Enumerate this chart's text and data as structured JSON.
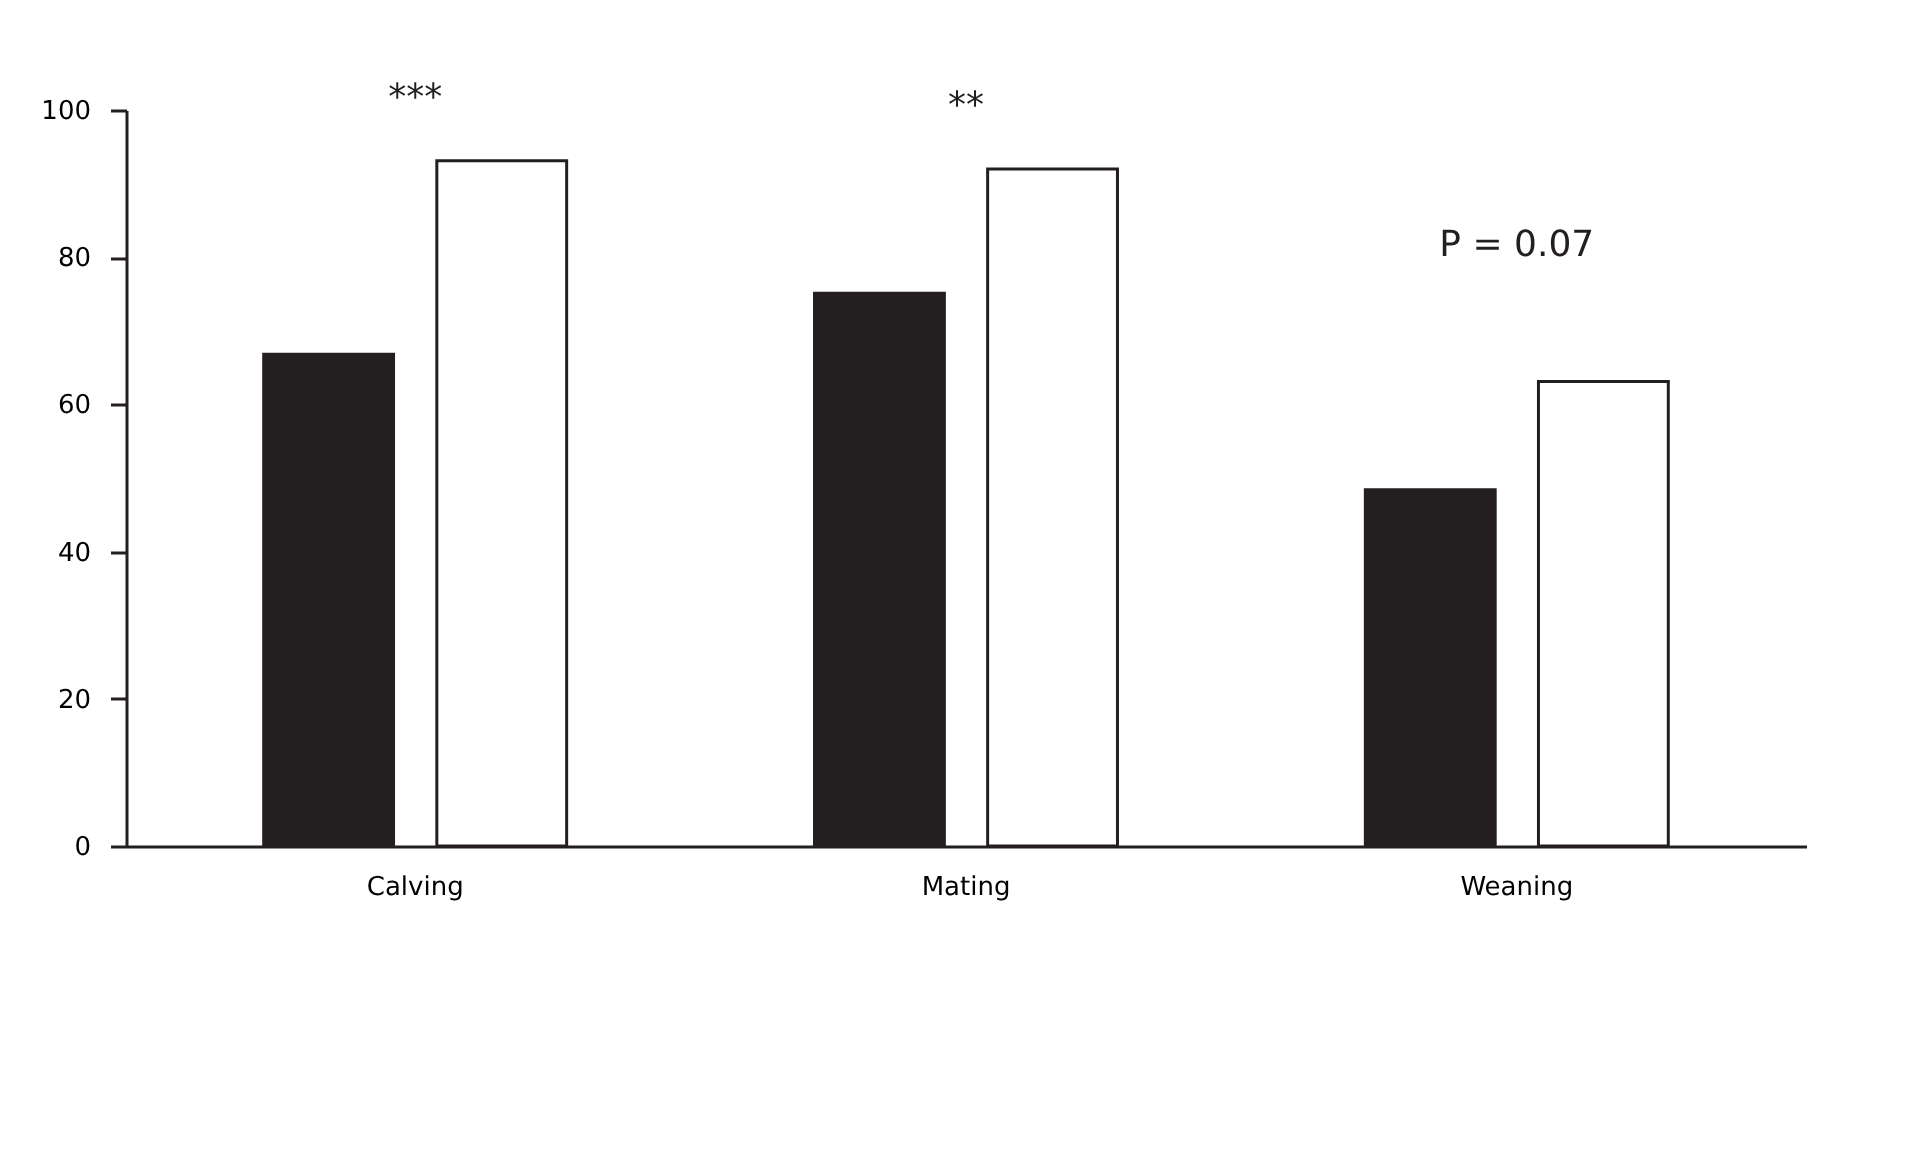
{
  "chart_data": {
    "type": "bar",
    "categories": [
      "Calving",
      "Mating",
      "Weaning"
    ],
    "series": [
      {
        "color": "#231f20",
        "values": [
          66.8,
          75.1,
          48.4
        ]
      },
      {
        "color": "#ffffff",
        "values": [
          93.1,
          92.0,
          63.1
        ]
      }
    ],
    "ylim": [
      0,
      100
    ],
    "yticks": [
      0,
      20,
      40,
      60,
      80,
      100
    ],
    "grid": false,
    "legend": false,
    "annotations": [
      "***",
      "**",
      "P = 0.07"
    ]
  }
}
